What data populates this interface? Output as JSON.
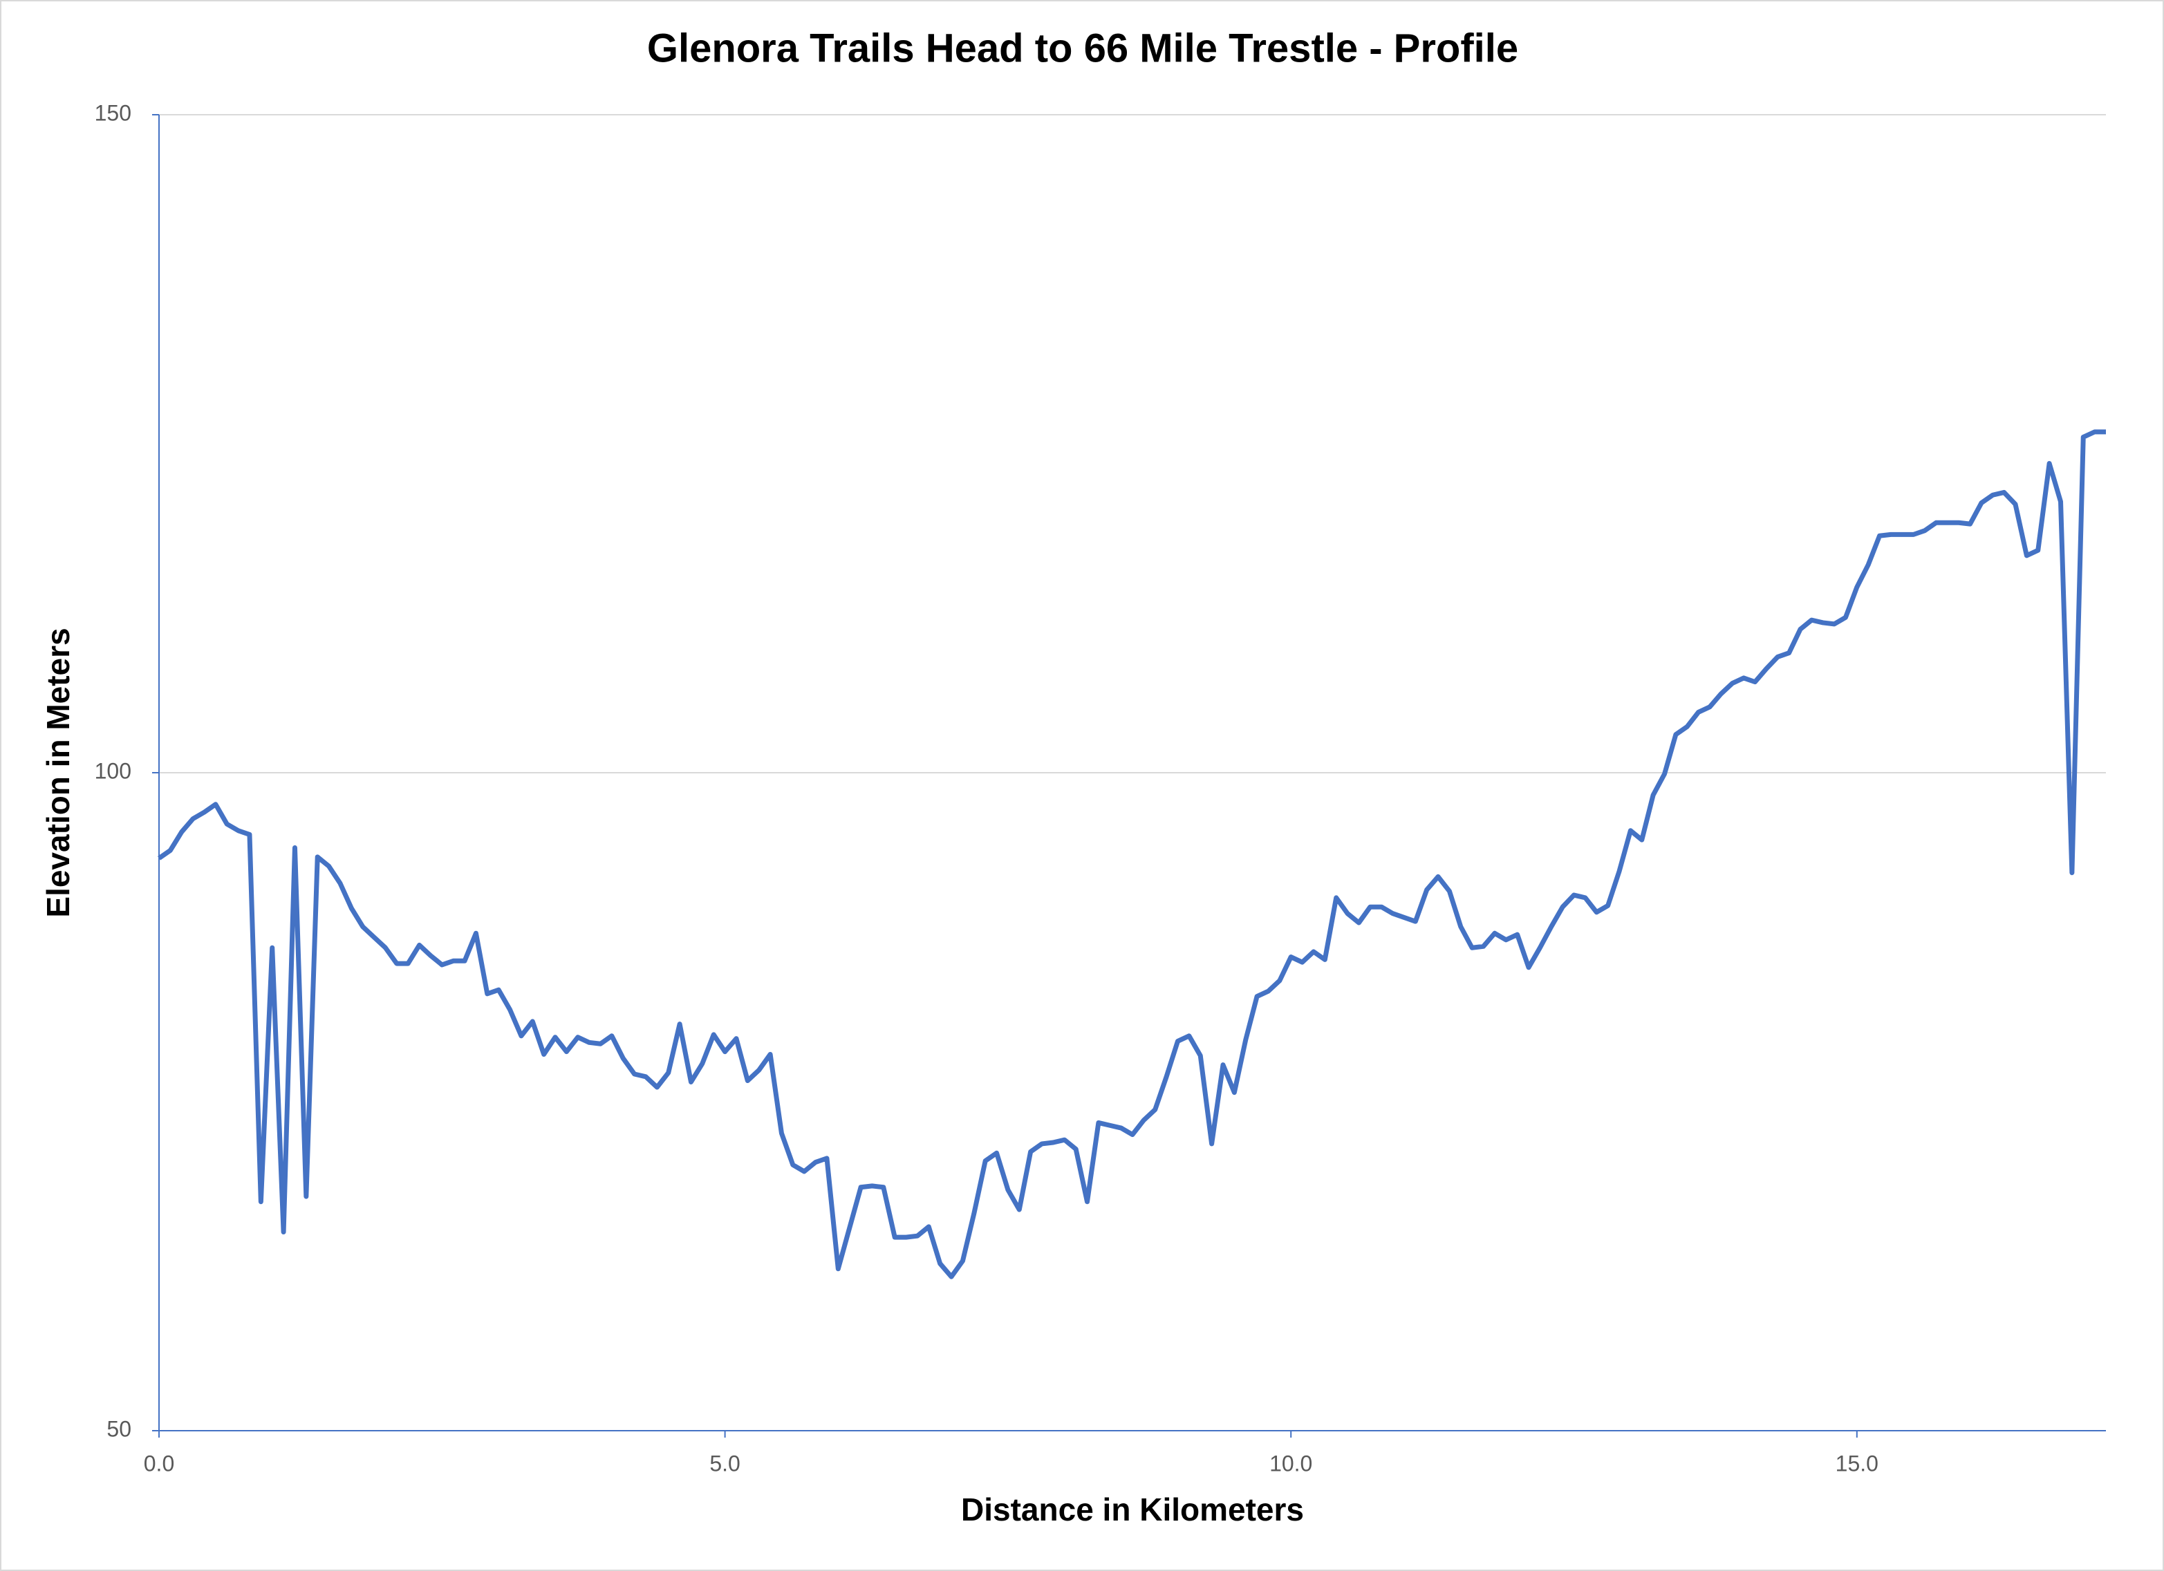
{
  "chart_data": {
    "type": "line",
    "title": "Glenora Trails Head to 66 Mile Trestle - Profile",
    "x_label": "Distance in Kilometers",
    "y_label": "Elevation in Meters",
    "xlim": [
      0,
      17.2
    ],
    "ylim": [
      50,
      150
    ],
    "xticks": [
      {
        "value": 0,
        "label": "0.0"
      },
      {
        "value": 5,
        "label": "5.0"
      },
      {
        "value": 10,
        "label": "10.0"
      },
      {
        "value": 15,
        "label": "15.0"
      }
    ],
    "yticks": [
      50,
      100,
      150
    ],
    "grid": true,
    "x": [
      0.0,
      0.1,
      0.2,
      0.3,
      0.4,
      0.5,
      0.6,
      0.7,
      0.8,
      0.9,
      1.0,
      1.1,
      1.2,
      1.3,
      1.4,
      1.5,
      1.6,
      1.7,
      1.8,
      1.9,
      2.0,
      2.1,
      2.2,
      2.3,
      2.4,
      2.5,
      2.6,
      2.7,
      2.8,
      2.9,
      3.0,
      3.1,
      3.2,
      3.3,
      3.4,
      3.5,
      3.6,
      3.7,
      3.8,
      3.9,
      4.0,
      4.1,
      4.2,
      4.3,
      4.4,
      4.5,
      4.6,
      4.7,
      4.8,
      4.9,
      5.0,
      5.1,
      5.2,
      5.3,
      5.4,
      5.5,
      5.6,
      5.7,
      5.8,
      5.9,
      6.0,
      6.1,
      6.2,
      6.3,
      6.4,
      6.5,
      6.6,
      6.7,
      6.8,
      6.9,
      7.0,
      7.1,
      7.2,
      7.3,
      7.4,
      7.5,
      7.6,
      7.7,
      7.8,
      7.9,
      8.0,
      8.1,
      8.2,
      8.3,
      8.4,
      8.5,
      8.6,
      8.7,
      8.8,
      8.9,
      9.0,
      9.1,
      9.2,
      9.3,
      9.4,
      9.5,
      9.6,
      9.7,
      9.8,
      9.9,
      10.0,
      10.1,
      10.2,
      10.3,
      10.4,
      10.5,
      10.6,
      10.7,
      10.8,
      10.9,
      11.0,
      11.1,
      11.2,
      11.3,
      11.4,
      11.5,
      11.6,
      11.7,
      11.8,
      11.9,
      12.0,
      12.1,
      12.2,
      12.3,
      12.4,
      12.5,
      12.6,
      12.7,
      12.8,
      12.9,
      13.0,
      13.1,
      13.2,
      13.3,
      13.4,
      13.5,
      13.6,
      13.7,
      13.8,
      13.9,
      14.0,
      14.1,
      14.2,
      14.3,
      14.4,
      14.5,
      14.6,
      14.7,
      14.8,
      14.9,
      15.0,
      15.1,
      15.2,
      15.3,
      15.4,
      15.5,
      15.6,
      15.7,
      15.8,
      15.9,
      16.0,
      16.1,
      16.2,
      16.3,
      16.4,
      16.5,
      16.6,
      16.7,
      16.8,
      16.9,
      17.0,
      17.1,
      17.2
    ],
    "series": [
      {
        "color": "#4472c4",
        "values": [
          93.5,
          94.1,
          95.5,
          96.5,
          97.0,
          97.6,
          96.1,
          95.6,
          95.3,
          67.4,
          86.7,
          65.1,
          94.3,
          67.8,
          93.6,
          92.9,
          91.6,
          89.7,
          88.3,
          87.5,
          86.7,
          85.5,
          85.5,
          86.9,
          86.1,
          85.4,
          85.7,
          85.7,
          87.8,
          83.2,
          83.5,
          82.0,
          80.0,
          81.1,
          78.6,
          79.9,
          78.8,
          79.9,
          79.5,
          79.4,
          80.0,
          78.3,
          77.1,
          76.9,
          76.1,
          77.2,
          80.9,
          76.5,
          77.9,
          80.1,
          78.8,
          79.8,
          76.6,
          77.4,
          78.6,
          72.6,
          70.2,
          69.7,
          70.4,
          70.7,
          62.3,
          65.4,
          68.5,
          68.6,
          68.5,
          64.7,
          64.7,
          64.8,
          65.5,
          62.7,
          61.7,
          62.9,
          66.5,
          70.5,
          71.1,
          68.3,
          66.8,
          71.2,
          71.8,
          71.9,
          72.1,
          71.4,
          67.4,
          73.4,
          73.2,
          73.0,
          72.5,
          73.6,
          74.4,
          76.9,
          79.6,
          80.0,
          78.5,
          71.8,
          77.8,
          75.7,
          79.7,
          83.0,
          83.4,
          84.2,
          86.0,
          85.6,
          86.4,
          85.8,
          90.5,
          89.3,
          88.6,
          89.8,
          89.8,
          89.3,
          89.0,
          88.7,
          91.1,
          92.1,
          91.0,
          88.3,
          86.7,
          86.8,
          87.8,
          87.3,
          87.7,
          85.2,
          86.7,
          88.3,
          89.8,
          90.7,
          90.5,
          89.4,
          89.9,
          92.5,
          95.6,
          94.9,
          98.3,
          99.9,
          102.9,
          103.5,
          104.6,
          105.0,
          106.0,
          106.8,
          107.2,
          106.9,
          107.9,
          108.8,
          109.1,
          110.9,
          111.6,
          111.4,
          111.3,
          111.8,
          114.1,
          115.8,
          118.0,
          118.1,
          118.1,
          118.1,
          118.4,
          119.0,
          119.0,
          119.0,
          118.9,
          120.5,
          121.1,
          121.3,
          120.4,
          116.5,
          116.9,
          123.5,
          120.6,
          92.4,
          125.5,
          125.9,
          125.9
        ]
      }
    ]
  }
}
